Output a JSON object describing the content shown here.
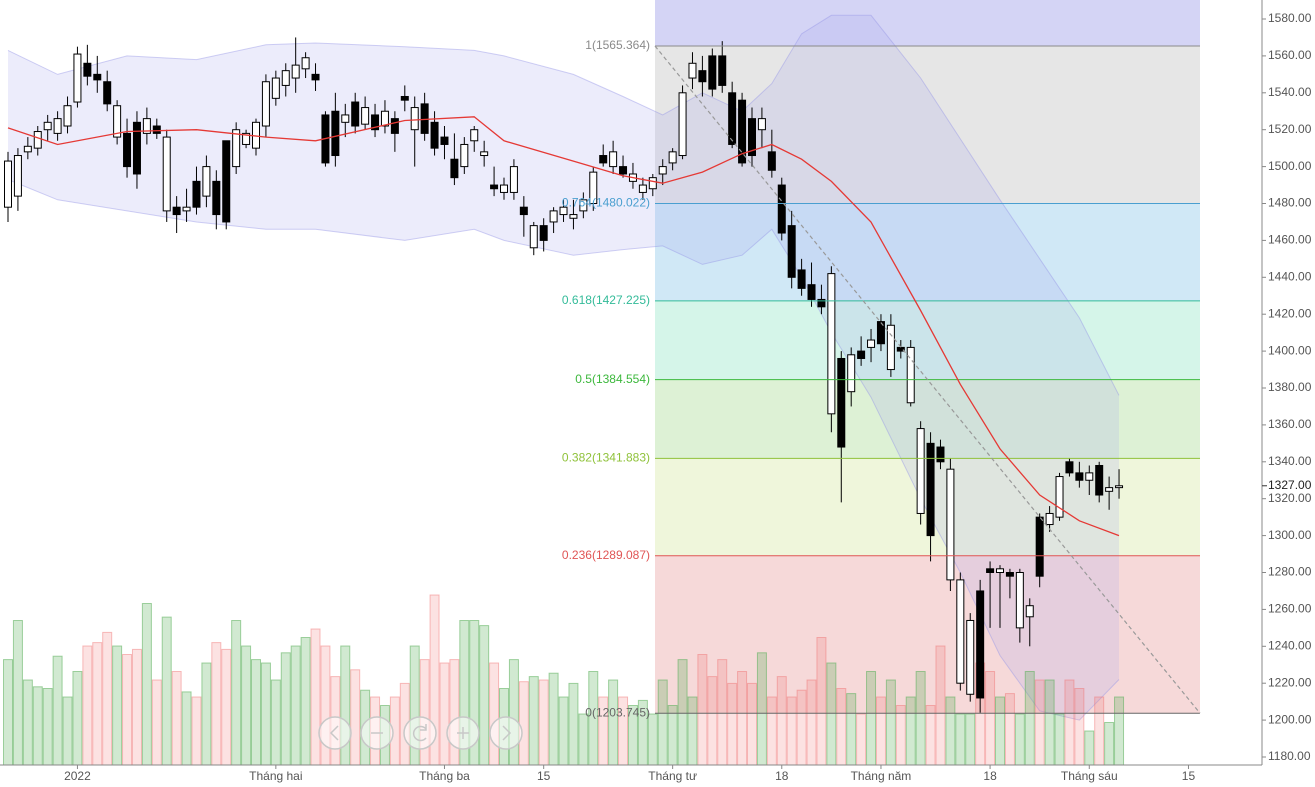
{
  "chart_data": {
    "type": "candlestick",
    "open": [
      1478,
      1484,
      1508,
      1510,
      1520,
      1518,
      1522,
      1535,
      1556,
      1550,
      1546,
      1516,
      1518,
      1524,
      1518,
      1522,
      1476,
      1478,
      1476,
      1492,
      1484,
      1492,
      1514,
      1500,
      1512,
      1510,
      1522,
      1537,
      1544,
      1548,
      1553,
      1550,
      1528,
      1530,
      1524,
      1535,
      1523,
      1528,
      1522,
      1526,
      1538,
      1520,
      1534,
      1524,
      1516,
      1504,
      1500,
      1514,
      1506,
      1490,
      1486,
      1486,
      1478,
      1456,
      1468,
      1470,
      1474,
      1472,
      1476,
      1480,
      1506,
      1500,
      1500,
      1492,
      1486,
      1488,
      1496,
      1502,
      1506,
      1548,
      1552,
      1560,
      1560,
      1540,
      1536,
      1526,
      1520,
      1508,
      1490,
      1468,
      1444,
      1436,
      1428,
      1366,
      1396,
      1378,
      1400,
      1402,
      1416,
      1390,
      1402,
      1372,
      1312,
      1350,
      1348,
      1276,
      1220,
      1214,
      1270,
      1282,
      1280,
      1280,
      1250,
      1256,
      1310,
      1306,
      1310,
      1340,
      1334,
      1330,
      1338,
      1324,
      1326
    ],
    "high": [
      1508,
      1510,
      1516,
      1522,
      1528,
      1530,
      1538,
      1565,
      1566,
      1560,
      1552,
      1536,
      1526,
      1530,
      1532,
      1526,
      1520,
      1484,
      1488,
      1500,
      1506,
      1498,
      1514,
      1524,
      1520,
      1526,
      1550,
      1552,
      1556,
      1570,
      1562,
      1556,
      1530,
      1540,
      1534,
      1540,
      1538,
      1534,
      1536,
      1530,
      1544,
      1538,
      1540,
      1530,
      1522,
      1518,
      1516,
      1522,
      1514,
      1500,
      1494,
      1504,
      1484,
      1470,
      1472,
      1478,
      1482,
      1482,
      1486,
      1500,
      1512,
      1514,
      1506,
      1502,
      1494,
      1496,
      1504,
      1510,
      1544,
      1562,
      1560,
      1564,
      1568,
      1546,
      1540,
      1532,
      1532,
      1520,
      1494,
      1476,
      1450,
      1448,
      1436,
      1446,
      1400,
      1402,
      1408,
      1412,
      1420,
      1420,
      1406,
      1406,
      1362,
      1356,
      1352,
      1342,
      1280,
      1258,
      1276,
      1286,
      1284,
      1282,
      1282,
      1266,
      1312,
      1316,
      1334,
      1342,
      1340,
      1338,
      1340,
      1332,
      1336
    ],
    "low": [
      1470,
      1476,
      1504,
      1506,
      1514,
      1514,
      1518,
      1532,
      1544,
      1540,
      1530,
      1512,
      1494,
      1488,
      1512,
      1515,
      1470,
      1464,
      1470,
      1474,
      1478,
      1466,
      1466,
      1496,
      1510,
      1506,
      1516,
      1533,
      1538,
      1540,
      1548,
      1541,
      1500,
      1500,
      1516,
      1518,
      1520,
      1516,
      1518,
      1508,
      1530,
      1500,
      1514,
      1506,
      1504,
      1490,
      1496,
      1508,
      1500,
      1484,
      1482,
      1482,
      1462,
      1452,
      1454,
      1464,
      1470,
      1466,
      1472,
      1476,
      1500,
      1496,
      1494,
      1488,
      1482,
      1484,
      1490,
      1498,
      1504,
      1542,
      1538,
      1538,
      1540,
      1510,
      1500,
      1500,
      1510,
      1494,
      1460,
      1434,
      1430,
      1424,
      1420,
      1356,
      1318,
      1370,
      1392,
      1394,
      1400,
      1386,
      1396,
      1370,
      1306,
      1286,
      1336,
      1270,
      1216,
      1210,
      1204,
      1250,
      1250,
      1266,
      1242,
      1240,
      1272,
      1302,
      1308,
      1332,
      1326,
      1322,
      1318,
      1314,
      1320
    ],
    "close": [
      1503,
      1506,
      1511,
      1519,
      1524,
      1526,
      1533,
      1561,
      1549,
      1547,
      1534,
      1533,
      1500,
      1496,
      1526,
      1518,
      1516,
      1474,
      1478,
      1478,
      1500,
      1474,
      1470,
      1520,
      1518,
      1524,
      1546,
      1548,
      1552,
      1555,
      1559,
      1547,
      1502,
      1506,
      1528,
      1522,
      1532,
      1520,
      1530,
      1518,
      1536,
      1532,
      1518,
      1510,
      1512,
      1494,
      1512,
      1520,
      1508,
      1488,
      1490,
      1500,
      1474,
      1468,
      1460,
      1476,
      1478,
      1474,
      1482,
      1497,
      1502,
      1508,
      1496,
      1496,
      1490,
      1494,
      1500,
      1508,
      1540,
      1556,
      1546,
      1542,
      1544,
      1512,
      1502,
      1506,
      1526,
      1498,
      1464,
      1440,
      1434,
      1428,
      1424,
      1442,
      1348,
      1398,
      1396,
      1406,
      1404,
      1414,
      1400,
      1402,
      1358,
      1300,
      1340,
      1336,
      1276,
      1254,
      1212,
      1280,
      1282,
      1278,
      1280,
      1262,
      1278,
      1312,
      1332,
      1334,
      1330,
      1334,
      1322,
      1326,
      1327
    ],
    "volume": [
      62,
      85,
      50,
      46,
      45,
      64,
      40,
      55,
      70,
      72,
      78,
      70,
      65,
      68,
      95,
      50,
      87,
      55,
      43,
      40,
      60,
      72,
      68,
      85,
      70,
      62,
      60,
      50,
      66,
      70,
      75,
      80,
      70,
      52,
      70,
      56,
      44,
      40,
      35,
      40,
      48,
      70,
      62,
      100,
      60,
      62,
      85,
      85,
      82,
      60,
      45,
      62,
      49,
      52,
      50,
      54,
      40,
      48,
      30,
      55,
      40,
      50,
      40,
      35,
      38,
      30,
      50,
      35,
      62,
      40,
      65,
      52,
      62,
      48,
      55,
      48,
      66,
      40,
      52,
      40,
      44,
      50,
      75,
      60,
      45,
      42,
      30,
      55,
      40,
      50,
      35,
      40,
      55,
      35,
      70,
      40,
      30,
      30,
      60,
      55,
      40,
      42,
      30,
      55,
      50,
      50,
      30,
      50,
      45,
      20,
      40,
      25,
      40
    ],
    "up_color": "#ffffff",
    "down_color": "#000000",
    "indicators": {
      "x": [
        0,
        5,
        12,
        19,
        26,
        31,
        40,
        47,
        50,
        57,
        62,
        66,
        70,
        74,
        77,
        80,
        83,
        87,
        92,
        96,
        100,
        104,
        108,
        112
      ],
      "ma": [
        1521,
        1512,
        1519,
        1520,
        1516,
        1514,
        1525,
        1527,
        1514,
        1503,
        1495,
        1491,
        1497,
        1507,
        1512,
        1504,
        1492,
        1470,
        1422,
        1382,
        1347,
        1322,
        1308,
        1300
      ],
      "upper": [
        1563,
        1550,
        1560,
        1558,
        1566,
        1567,
        1565,
        1563,
        1560,
        1550,
        1538,
        1528,
        1540,
        1530,
        1545,
        1572,
        1582,
        1582,
        1548,
        1515,
        1482,
        1450,
        1418,
        1376
      ],
      "lower": [
        1493,
        1482,
        1476,
        1470,
        1466,
        1466,
        1460,
        1466,
        1460,
        1452,
        1455,
        1457,
        1447,
        1452,
        1466,
        1440,
        1410,
        1375,
        1320,
        1280,
        1235,
        1205,
        1200,
        1222
      ],
      "ma_color": "#e53935"
    },
    "fib_levels": [
      {
        "value": 1565.364,
        "label": "1(1565.364)",
        "color": "#8a8a8a",
        "fill": "rgba(170,170,235,0.5)"
      },
      {
        "value": 1480.022,
        "label": "0.764(1480.022)",
        "color": "#4a9fd0",
        "fill": "rgba(200,200,200,0.45)"
      },
      {
        "value": 1427.225,
        "label": "0.618(1427.225)",
        "color": "#33bb99",
        "fill": "rgba(150,205,235,0.45)"
      },
      {
        "value": 1384.554,
        "label": "0.5(1384.554)",
        "color": "#3cb83c",
        "fill": "rgba(150,230,200,0.4)"
      },
      {
        "value": 1341.883,
        "label": "0.382(1341.883)",
        "color": "#8fc23a",
        "fill": "rgba(170,220,150,0.4)"
      },
      {
        "value": 1289.087,
        "label": "0.236(1289.087)",
        "color": "#e05555",
        "fill": "rgba(215,232,165,0.4)"
      },
      {
        "value": 1203.745,
        "label": "0(1203.745)",
        "color": "#666666",
        "fill": "rgba(235,170,170,0.45)"
      }
    ],
    "ylim": [
      1180,
      1580
    ],
    "yticks": [
      {
        "value": 1180,
        "label": "1180.00"
      },
      {
        "value": 1200,
        "label": "1200.00"
      },
      {
        "value": 1220,
        "label": "1220.00"
      },
      {
        "value": 1240,
        "label": "1240.00"
      },
      {
        "value": 1260,
        "label": "1260.00"
      },
      {
        "value": 1280,
        "label": "1280.00"
      },
      {
        "value": 1300,
        "label": "1300.00"
      },
      {
        "value": 1320,
        "label": "1320.00"
      },
      {
        "value": 1340,
        "label": "1340.00"
      },
      {
        "value": 1360,
        "label": "1360.00"
      },
      {
        "value": 1380,
        "label": "1380.00"
      },
      {
        "value": 1400,
        "label": "1400.00"
      },
      {
        "value": 1420,
        "label": "1420.00"
      },
      {
        "value": 1440,
        "label": "1440.00"
      },
      {
        "value": 1460,
        "label": "1460.00"
      },
      {
        "value": 1480,
        "label": "1480.00"
      },
      {
        "value": 1500,
        "label": "1500.00"
      },
      {
        "value": 1520,
        "label": "1520.00"
      },
      {
        "value": 1540,
        "label": "1540.00"
      },
      {
        "value": 1560,
        "label": "1560.00"
      },
      {
        "value": 1580,
        "label": "1580.00"
      }
    ],
    "xticks": [
      {
        "value": 7,
        "label": "2022"
      },
      {
        "value": 27,
        "label": "Tháng hai"
      },
      {
        "value": 44,
        "label": "Tháng ba"
      },
      {
        "value": 54,
        "label": "15"
      },
      {
        "value": 67,
        "label": "Tháng tư"
      },
      {
        "value": 78,
        "label": "18"
      },
      {
        "value": 88,
        "label": "Tháng năm"
      },
      {
        "value": 99,
        "label": "18"
      },
      {
        "value": 109,
        "label": "Tháng sáu"
      },
      {
        "value": 119,
        "label": "15"
      }
    ],
    "last_price": {
      "value": 1327,
      "label": "1327.00"
    }
  }
}
